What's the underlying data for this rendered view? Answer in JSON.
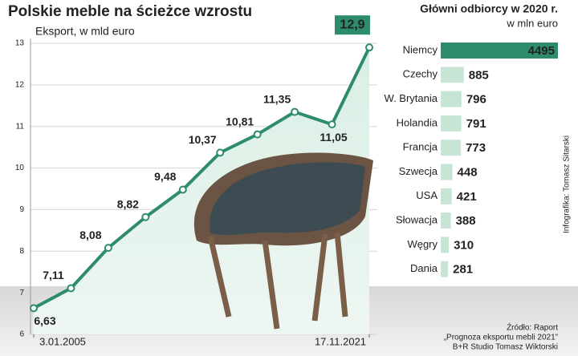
{
  "chart_data": [
    {
      "type": "line",
      "title": "Polskie meble na ścieżce wzrostu",
      "subtitle": "Eksport, w mld euro",
      "categories": [
        "3.01.2005",
        null,
        null,
        null,
        null,
        null,
        null,
        null,
        null,
        "17.11.2021"
      ],
      "values": [
        6.63,
        7.11,
        8.08,
        8.82,
        9.48,
        10.37,
        10.81,
        11.35,
        11.05,
        12.9
      ],
      "value_labels": [
        "6,63",
        "7,11",
        "8,08",
        "8,82",
        "9,48",
        "10,37",
        "10,81",
        "11,35",
        "11,05",
        "12,9"
      ],
      "color": "#2e8b6e",
      "ylim": [
        6,
        13
      ],
      "yticks": [
        6,
        7,
        8,
        9,
        10,
        11,
        12,
        13
      ],
      "grid": true
    },
    {
      "type": "hbar",
      "title": "Główni odbiorcy w 2020 r.",
      "subtitle": "w mln euro",
      "categories": [
        "Niemcy",
        "Czechy",
        "W. Brytania",
        "Holandia",
        "Francja",
        "Szwecja",
        "USA",
        "Słowacja",
        "Węgry",
        "Dania"
      ],
      "values": [
        4495,
        885,
        796,
        791,
        773,
        448,
        421,
        388,
        310,
        281
      ],
      "colors": [
        "#2e8b6e",
        "#c6e5d5",
        "#c6e5d5",
        "#c6e5d5",
        "#c6e5d5",
        "#c6e5d5",
        "#c6e5d5",
        "#c6e5d5",
        "#c6e5d5",
        "#c6e5d5"
      ]
    }
  ],
  "credit": "Infografika: Tomasz Sitarski",
  "source": [
    "Źródło: Raport",
    "„Prognoza eksportu mebli 2021”",
    "B+R Studio Tomasz Wiktorski"
  ]
}
